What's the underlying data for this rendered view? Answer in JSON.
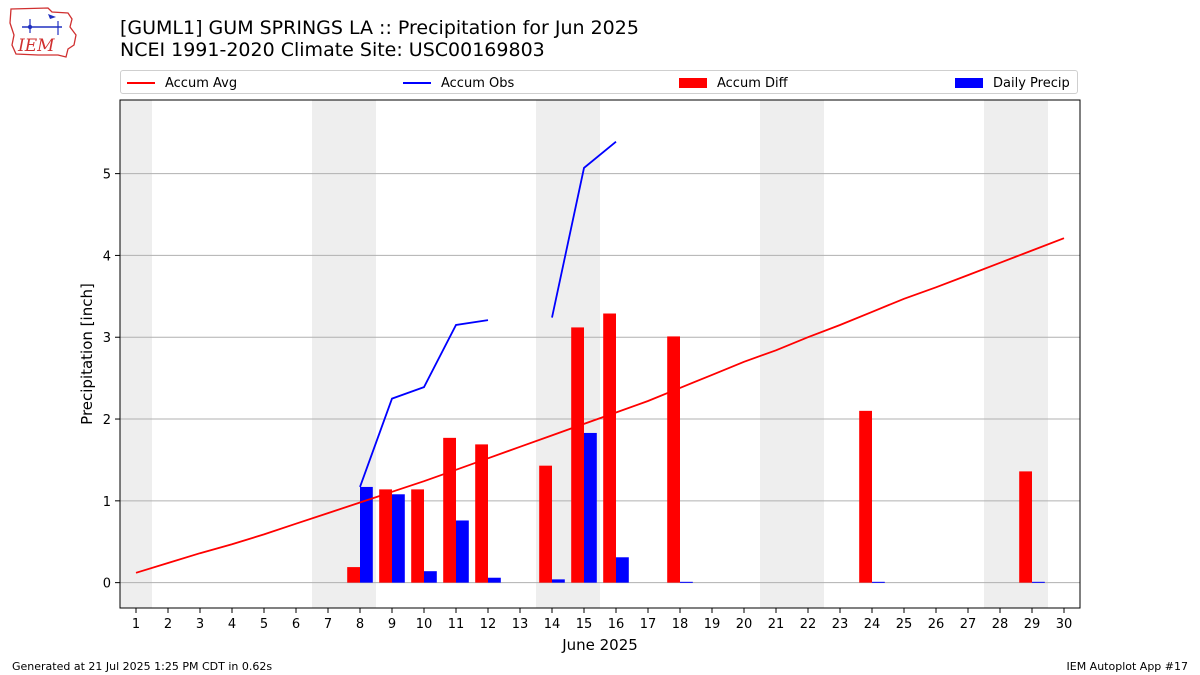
{
  "header": {
    "title_line1": "[GUML1] GUM SPRINGS  LA :: Precipitation for Jun 2025",
    "title_line2": "NCEI 1991-2020 Climate Site: USC00169803",
    "logo_text": "IEM"
  },
  "footer": {
    "generated": "Generated at 21 Jul 2025 1:25 PM CDT in 0.62s",
    "app": "IEM Autoplot App #17"
  },
  "colors": {
    "accum_avg": "#ff0000",
    "accum_obs": "#0000ff",
    "accum_diff": "#ff0000",
    "daily_precip": "#0000ff",
    "weekend_shade": "#eeeeee",
    "grid": "#b0b0b0"
  },
  "chart_data": {
    "type": "bar",
    "xlabel": "June 2025",
    "ylabel": "Precipitation [inch]",
    "xlim": [
      0.5,
      30.5
    ],
    "ylim": [
      -0.31,
      5.9
    ],
    "yticks": [
      0,
      1,
      2,
      3,
      4,
      5
    ],
    "grid": "y",
    "legend_position": "top",
    "x": [
      1,
      2,
      3,
      4,
      5,
      6,
      7,
      8,
      9,
      10,
      11,
      12,
      13,
      14,
      15,
      16,
      17,
      18,
      19,
      20,
      21,
      22,
      23,
      24,
      25,
      26,
      27,
      28,
      29,
      30
    ],
    "weekend_spans": [
      [
        0.5,
        1.5
      ],
      [
        6.5,
        8.5
      ],
      [
        13.5,
        15.5
      ],
      [
        20.5,
        22.5
      ],
      [
        27.5,
        29.5
      ]
    ],
    "series": [
      {
        "name": "Accum Avg",
        "kind": "line",
        "values": [
          0.12,
          0.24,
          0.36,
          0.47,
          0.59,
          0.72,
          0.85,
          0.98,
          1.11,
          1.24,
          1.38,
          1.52,
          1.66,
          1.8,
          1.94,
          2.08,
          2.22,
          2.38,
          2.54,
          2.7,
          2.84,
          3.0,
          3.15,
          3.31,
          3.47,
          3.61,
          3.76,
          3.91,
          4.06,
          4.21
        ]
      },
      {
        "name": "Accum Obs",
        "kind": "line",
        "values": [
          null,
          null,
          null,
          null,
          null,
          null,
          null,
          1.17,
          2.25,
          2.39,
          3.15,
          3.21,
          null,
          3.24,
          5.07,
          5.39,
          null,
          null,
          null,
          null,
          null,
          null,
          null,
          null,
          null,
          null,
          null,
          null,
          null,
          null
        ]
      },
      {
        "name": "Accum Diff",
        "kind": "bar",
        "values": [
          0,
          0,
          0,
          0,
          0,
          0,
          0,
          0.19,
          1.14,
          1.14,
          1.77,
          1.69,
          0,
          1.43,
          3.12,
          3.29,
          0,
          3.01,
          0,
          0,
          0,
          0,
          0,
          2.1,
          0,
          0,
          0,
          0,
          1.36,
          0
        ]
      },
      {
        "name": "Daily Precip",
        "kind": "bar",
        "values": [
          0,
          0,
          0,
          0,
          0,
          0,
          0,
          1.17,
          1.08,
          0.14,
          0.76,
          0.06,
          0,
          0.04,
          1.83,
          0.31,
          0,
          0.01,
          0,
          0,
          0,
          0,
          0,
          0.01,
          0,
          0,
          0,
          0,
          0.01,
          0
        ]
      }
    ]
  }
}
